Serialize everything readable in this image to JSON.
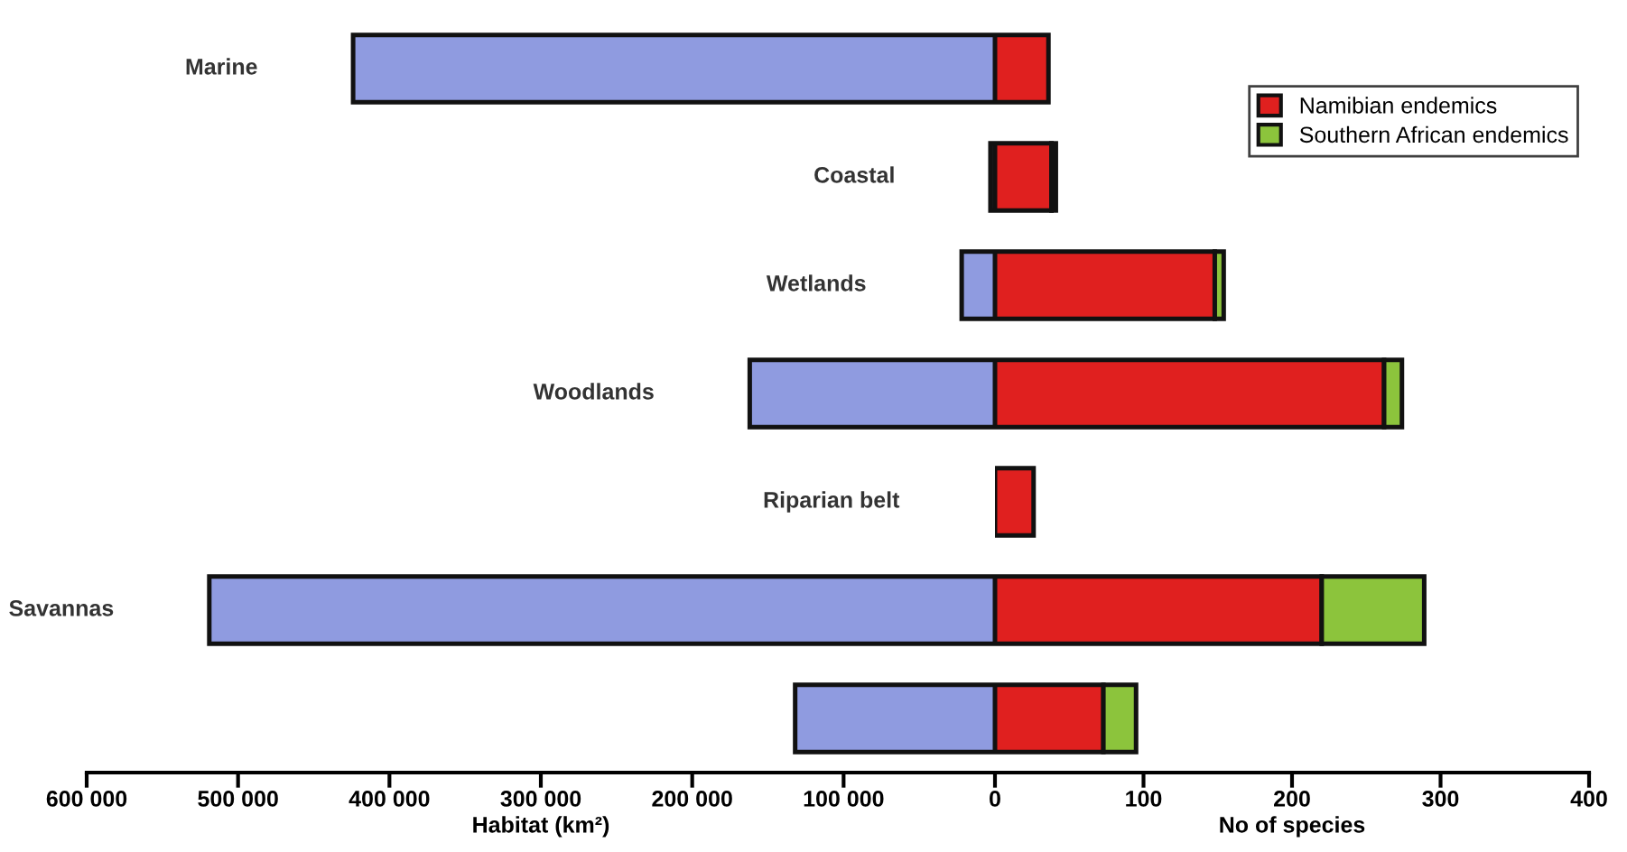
{
  "chart_data": [
    {
      "type": "bar",
      "orientation": "horizontal",
      "categories": [
        "Marine",
        "Coastal",
        "Wetlands",
        "Woodlands",
        "Riparian belt",
        "Savannas",
        null
      ],
      "values": [
        424000,
        3000,
        22000,
        162000,
        null,
        519000,
        132000
      ],
      "color": "#8f9be0",
      "xlim": [
        600000,
        0
      ],
      "xticks": [
        {
          "value": 600000,
          "label": "600 000"
        },
        {
          "value": 500000,
          "label": "500 000"
        },
        {
          "value": 400000,
          "label": "400 000"
        },
        {
          "value": 300000,
          "label": "300 000"
        },
        {
          "value": 200000,
          "label": "200 000"
        },
        {
          "value": 100000,
          "label": "100 000"
        },
        0
      ],
      "xlabel": "Habitat (km²)"
    },
    {
      "type": "bar",
      "orientation": "horizontal",
      "stacked": true,
      "categories": [
        null,
        null,
        null,
        null,
        null,
        null,
        null
      ],
      "series": [
        {
          "name": "Namibian endemics",
          "color": "#e0201f",
          "values": [
            36,
            38,
            148,
            262,
            26,
            220,
            73
          ]
        },
        {
          "name": "Southern African endemics",
          "color": "#8cc43c",
          "values": [
            null,
            3,
            6,
            12,
            null,
            69,
            22
          ]
        }
      ],
      "xlim": [
        0,
        400
      ],
      "xticks": [
        100,
        200,
        300,
        400
      ],
      "xlabel": "No of species",
      "legend": "top right"
    }
  ]
}
